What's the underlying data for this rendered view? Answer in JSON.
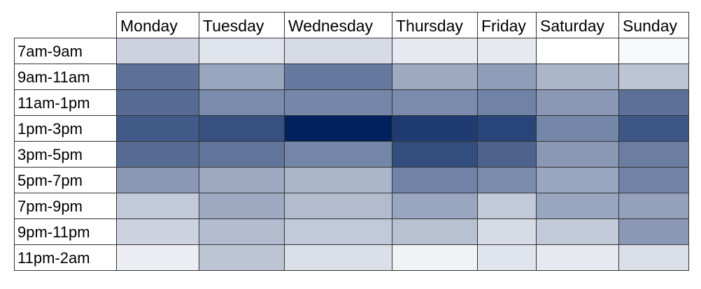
{
  "chart_data": {
    "type": "heatmap",
    "columns": [
      "Monday",
      "Tuesday",
      "Wednesday",
      "Thursday",
      "Friday",
      "Saturday",
      "Sunday"
    ],
    "rows": [
      "7am-9am",
      "9am-11am",
      "11am-1pm",
      "1pm-3pm",
      "3pm-5pm",
      "5pm-7pm",
      "7pm-9pm",
      "9pm-11pm",
      "11pm-2am"
    ],
    "values": [
      [
        0.2,
        0.12,
        0.16,
        0.1,
        0.1,
        0.0,
        0.03
      ],
      [
        0.64,
        0.4,
        0.6,
        0.38,
        0.44,
        0.33,
        0.26
      ],
      [
        0.66,
        0.52,
        0.54,
        0.52,
        0.56,
        0.46,
        0.64
      ],
      [
        0.74,
        0.78,
        1.0,
        0.88,
        0.84,
        0.54,
        0.76
      ],
      [
        0.66,
        0.62,
        0.54,
        0.8,
        0.7,
        0.46,
        0.58
      ],
      [
        0.46,
        0.38,
        0.33,
        0.56,
        0.52,
        0.4,
        0.56
      ],
      [
        0.24,
        0.38,
        0.3,
        0.4,
        0.24,
        0.4,
        0.42
      ],
      [
        0.2,
        0.3,
        0.24,
        0.28,
        0.16,
        0.24,
        0.46
      ],
      [
        0.08,
        0.26,
        0.14,
        0.06,
        0.12,
        0.1,
        0.14
      ]
    ],
    "colorscale": {
      "low": "#ffffff",
      "high": "#00205e"
    },
    "scale_range": [
      0,
      1
    ]
  }
}
